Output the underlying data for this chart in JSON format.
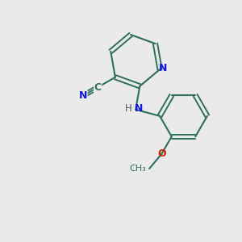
{
  "background_color": "#eaeaea",
  "bond_color": "#2d6e5e",
  "N_color": "#1414e6",
  "O_color": "#cc2200",
  "figsize": [
    3.0,
    3.0
  ],
  "dpi": 100,
  "xlim": [
    0,
    10
  ],
  "ylim": [
    0,
    10
  ]
}
